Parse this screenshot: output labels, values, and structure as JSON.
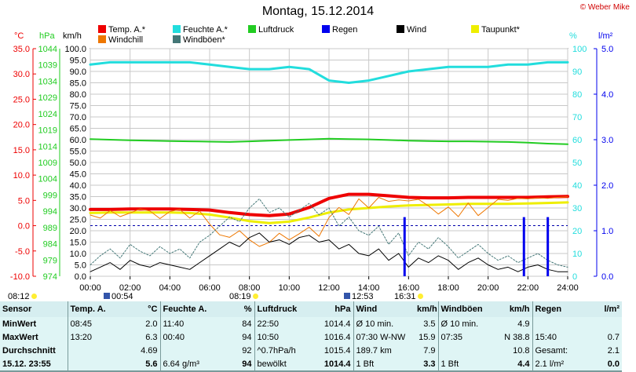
{
  "header": {
    "title": "Montag, 15.12.2014",
    "copyright": "© Weber Mike"
  },
  "legend": [
    {
      "label": "Temp. A.*",
      "color": "#ee0000"
    },
    {
      "label": "Feuchte A.*",
      "color": "#22dddd"
    },
    {
      "label": "Luftdruck",
      "color": "#22cc22"
    },
    {
      "label": "Regen",
      "color": "#0000ee"
    },
    {
      "label": "Wind",
      "color": "#000000"
    },
    {
      "label": "Taupunkt*",
      "color": "#eeee00"
    },
    {
      "label": "Windchill",
      "color": "#ee7700"
    },
    {
      "label": "Windböen*",
      "color": "#447777"
    }
  ],
  "axis_headers": {
    "temp": "°C",
    "pressure": "hPa",
    "speed": "km/h",
    "humidity": "%",
    "rain": "l/m²"
  },
  "sun": {
    "sunrise_left": "08:12",
    "sunset_right": "16:31",
    "marker_a": "00:54",
    "marker_b": "08:19",
    "marker_c": "12:53"
  },
  "chart_data": {
    "type": "line",
    "title": "Montag, 15.12.2014",
    "x_ticks": [
      "00:00",
      "02:00",
      "04:00",
      "06:00",
      "08:00",
      "10:00",
      "12:00",
      "14:00",
      "16:00",
      "18:00",
      "20:00",
      "22:00",
      "24:00"
    ],
    "axes": {
      "temp_c": {
        "ticks": [
          "35.0",
          "30.0",
          "25.0",
          "20.0",
          "15.0",
          "10.0",
          "5.0",
          "0.0",
          "-5.0",
          "-10.0"
        ],
        "range": [
          -10,
          35
        ],
        "color": "#ee0000"
      },
      "pressure_hpa": {
        "ticks": [
          "1044",
          "1039",
          "1034",
          "1029",
          "1024",
          "1019",
          "1014",
          "1009",
          "1004",
          "999",
          "994",
          "989",
          "984",
          "979",
          "974"
        ],
        "range": [
          974,
          1044
        ],
        "color": "#22cc22"
      },
      "speed_kmh": {
        "ticks": [
          "100.0",
          "95.0",
          "90.0",
          "85.0",
          "80.0",
          "75.0",
          "70.0",
          "65.0",
          "60.0",
          "55.0",
          "50.0",
          "45.0",
          "40.0",
          "35.0",
          "30.0",
          "25.0",
          "20.0",
          "15.0",
          "10.0",
          "5.0",
          "0.0"
        ],
        "range": [
          0,
          100
        ],
        "color": "#000000"
      },
      "humidity_pct": {
        "ticks": [
          "100",
          "90",
          "80",
          "70",
          "60",
          "50",
          "40",
          "30",
          "20",
          "10",
          "0"
        ],
        "range": [
          0,
          100
        ],
        "color": "#22dddd"
      },
      "rain_lm2": {
        "ticks": [
          "5.0",
          "4.0",
          "3.0",
          "2.0",
          "1.0",
          "0.0"
        ],
        "range": [
          0,
          5
        ],
        "color": "#0000ee"
      }
    },
    "series": [
      {
        "name": "Temp. A.*",
        "axis": "temp_c",
        "color": "#ee0000",
        "width": 4,
        "x": [
          0,
          1,
          2,
          3,
          4,
          5,
          6,
          7,
          8,
          9,
          10,
          11,
          12,
          13,
          14,
          15,
          16,
          17,
          18,
          19,
          20,
          21,
          22,
          23,
          24
        ],
        "y": [
          3.2,
          3.2,
          3.3,
          3.3,
          3.3,
          3.2,
          3.1,
          2.6,
          2.2,
          2.0,
          2.3,
          3.6,
          5.4,
          6.2,
          6.2,
          5.9,
          5.6,
          5.5,
          5.5,
          5.6,
          5.6,
          5.6,
          5.6,
          5.7,
          5.8
        ]
      },
      {
        "name": "Taupunkt*",
        "axis": "temp_c",
        "color": "#eeee00",
        "width": 3,
        "x": [
          0,
          1,
          2,
          3,
          4,
          5,
          6,
          7,
          8,
          9,
          10,
          11,
          12,
          13,
          14,
          15,
          16,
          17,
          18,
          19,
          20,
          21,
          22,
          23,
          24
        ],
        "y": [
          2.5,
          2.6,
          2.6,
          2.6,
          2.6,
          2.5,
          2.2,
          1.6,
          0.9,
          0.5,
          0.8,
          1.6,
          2.6,
          3.2,
          3.5,
          3.8,
          4.0,
          4.1,
          4.2,
          4.3,
          4.3,
          4.3,
          4.4,
          4.5,
          4.6
        ]
      },
      {
        "name": "Windchill",
        "axis": "temp_c",
        "color": "#ee7700",
        "width": 1,
        "x": [
          0,
          0.5,
          1,
          1.5,
          2,
          2.5,
          3,
          3.5,
          4,
          4.5,
          5,
          5.5,
          6,
          6.5,
          7,
          7.5,
          8,
          8.5,
          9,
          9.5,
          10,
          10.5,
          11,
          11.5,
          12,
          12.5,
          13,
          13.5,
          14,
          14.5,
          15,
          15.5,
          16,
          16.5,
          17,
          17.5,
          18,
          18.5,
          19,
          19.5,
          20,
          20.5,
          21,
          21.5,
          22,
          22.5,
          23,
          23.5,
          24
        ],
        "y": [
          2.1,
          1.5,
          3.0,
          1.8,
          2.5,
          3.3,
          2.9,
          1.4,
          2.8,
          3.2,
          1.5,
          2.9,
          0.3,
          -1.8,
          -2.3,
          -1.0,
          -2.8,
          -4.1,
          -3.3,
          -1.5,
          -2.8,
          -1.6,
          -0.3,
          -2.1,
          1.6,
          3.6,
          2.2,
          5.3,
          3.5,
          5.6,
          4.8,
          5.1,
          4.9,
          5.2,
          3.9,
          2.3,
          3.7,
          1.8,
          4.5,
          2.0,
          3.6,
          5.2,
          5.0,
          5.4,
          5.3,
          5.5,
          5.4,
          5.6,
          5.7
        ]
      },
      {
        "name": "Feuchte A.*",
        "axis": "humidity_pct",
        "color": "#22dddd",
        "width": 3,
        "x": [
          0,
          1,
          2,
          3,
          4,
          5,
          6,
          7,
          8,
          9,
          10,
          11,
          12,
          13,
          14,
          15,
          16,
          17,
          18,
          19,
          20,
          21,
          22,
          23,
          24
        ],
        "y": [
          93,
          94,
          94,
          94,
          94,
          94,
          93,
          92,
          91,
          91,
          92,
          91,
          86,
          85,
          86,
          88,
          90,
          91,
          92,
          92,
          92,
          93,
          93,
          94,
          94
        ]
      },
      {
        "name": "Luftdruck",
        "axis": "pressure_hpa",
        "color": "#22cc22",
        "width": 2,
        "x": [
          0,
          1,
          2,
          3,
          4,
          5,
          6,
          7,
          8,
          9,
          10,
          11,
          12,
          13,
          14,
          15,
          16,
          17,
          18,
          19,
          20,
          21,
          22,
          23,
          24
        ],
        "y": [
          1016.2,
          1016.0,
          1015.8,
          1015.7,
          1015.6,
          1015.5,
          1015.4,
          1015.3,
          1015.5,
          1015.7,
          1015.9,
          1016.1,
          1016.3,
          1016.2,
          1016.1,
          1015.9,
          1015.7,
          1015.6,
          1015.5,
          1015.5,
          1015.4,
          1015.3,
          1015.1,
          1014.8,
          1014.6
        ]
      },
      {
        "name": "Windböen*",
        "axis": "speed_kmh",
        "color": "#447777",
        "width": 1,
        "dash": "2,2",
        "x": [
          0,
          0.5,
          1,
          1.5,
          2,
          2.5,
          3,
          3.5,
          4,
          4.5,
          5,
          5.5,
          6,
          6.5,
          7,
          7.5,
          8,
          8.5,
          9,
          9.5,
          10,
          10.5,
          11,
          11.5,
          12,
          12.5,
          13,
          13.5,
          14,
          14.5,
          15,
          15.5,
          16,
          16.5,
          17,
          17.5,
          18,
          18.5,
          19,
          19.5,
          20,
          20.5,
          21,
          21.5,
          22,
          22.5,
          23,
          23.5,
          24
        ],
        "y": [
          5,
          9,
          12,
          8,
          14,
          11,
          9,
          13,
          10,
          12,
          8,
          15,
          18,
          22,
          26,
          24,
          30,
          34,
          28,
          30,
          26,
          29,
          32,
          27,
          30,
          22,
          26,
          20,
          18,
          22,
          14,
          19,
          9,
          15,
          12,
          17,
          13,
          8,
          11,
          14,
          10,
          7,
          9,
          6,
          8,
          10,
          7,
          5,
          4
        ]
      },
      {
        "name": "Wind",
        "axis": "speed_kmh",
        "color": "#000000",
        "width": 1,
        "x": [
          0,
          0.5,
          1,
          1.5,
          2,
          2.5,
          3,
          3.5,
          4,
          4.5,
          5,
          5.5,
          6,
          6.5,
          7,
          7.5,
          8,
          8.5,
          9,
          9.5,
          10,
          10.5,
          11,
          11.5,
          12,
          12.5,
          13,
          13.5,
          14,
          14.5,
          15,
          15.5,
          16,
          16.5,
          17,
          17.5,
          18,
          18.5,
          19,
          19.5,
          20,
          20.5,
          21,
          21.5,
          22,
          22.5,
          23,
          23.5,
          24
        ],
        "y": [
          2,
          4,
          6,
          3,
          7,
          5,
          4,
          6,
          5,
          4,
          3,
          6,
          9,
          12,
          15,
          13,
          17,
          19,
          15,
          16,
          14,
          17,
          18,
          15,
          16,
          12,
          14,
          10,
          9,
          12,
          7,
          10,
          4,
          8,
          6,
          9,
          7,
          3,
          6,
          8,
          5,
          3,
          4,
          2,
          4,
          5,
          3,
          2,
          2
        ]
      }
    ],
    "rain_events": [
      {
        "x": 15.8,
        "value": 1.3
      },
      {
        "x": 21.8,
        "value": 1.3
      },
      {
        "x": 23.0,
        "value": 1.3
      }
    ],
    "zero_line": {
      "axis": "temp_c",
      "value": 0.0
    }
  },
  "table": {
    "headers": [
      "Sensor",
      "Temp. A.",
      "°C",
      "Feuchte A.",
      "%",
      "Luftdruck",
      "hPa",
      "Wind",
      "km/h",
      "Windböen",
      "km/h",
      "Regen",
      "l/m²"
    ],
    "rows": [
      [
        "MinWert",
        "08:45",
        "2.0",
        "11:40",
        "84",
        "22:50",
        "1014.4",
        "Ø 10 min.",
        "3.5",
        "Ø 10 min.",
        "4.9",
        "",
        ""
      ],
      [
        "MaxWert",
        "13:20",
        "6.3",
        "00:40",
        "94",
        "10:50",
        "1016.4",
        "07:30    W-NW",
        "15.9",
        "07:35",
        "N  38.8",
        "15:40",
        "0.7"
      ],
      [
        "Durchschnitt",
        "",
        "4.69",
        "",
        "92",
        "^0.7hPa/h",
        "1015.4",
        "189.7 km",
        "7.9",
        "",
        "10.8",
        "Gesamt:",
        "2.1"
      ],
      [
        "15.12.  23:55",
        "",
        "5.6",
        "6.64 g/m³",
        "94",
        "bewölkt",
        "1014.4",
        "1 Bft",
        "3.3",
        "1 Bft",
        "4.4",
        "2.1 l/m²",
        "0.0"
      ]
    ]
  }
}
